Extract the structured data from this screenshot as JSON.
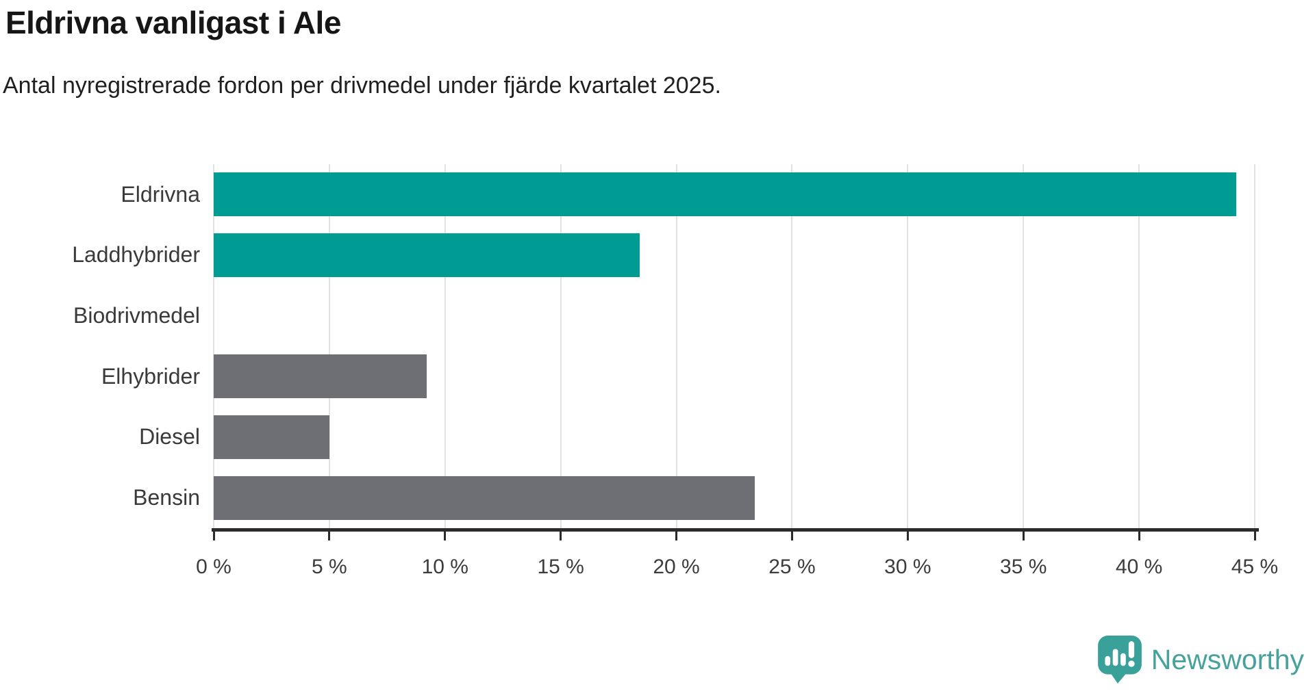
{
  "chart": {
    "title": "Eldrivna vanligast i Ale",
    "subtitle": "Antal nyregistrerade fordon per drivmedel under fjärde kvartalet 2025."
  },
  "chart_data": {
    "type": "bar",
    "orientation": "horizontal",
    "title": "Eldrivna vanligast i Ale",
    "subtitle": "Antal nyregistrerade fordon per drivmedel under fjärde kvartalet 2025.",
    "categories": [
      "Eldrivna",
      "Laddhybrider",
      "Biodrivmedel",
      "Elhybrider",
      "Diesel",
      "Bensin"
    ],
    "values": [
      44.2,
      18.4,
      0,
      9.2,
      5.0,
      23.4
    ],
    "unit": "%",
    "bar_colors": [
      "#009b93",
      "#009b93",
      "#6e6e75",
      "#6e6e75",
      "#6e6e75",
      "#6e6e75"
    ],
    "highlighted_categories": [
      "Eldrivna",
      "Laddhybrider"
    ],
    "xlim": [
      0,
      45
    ],
    "x_ticks": [
      0,
      5,
      10,
      15,
      20,
      25,
      30,
      35,
      40,
      45
    ],
    "x_tick_label_suffix": " %",
    "xlabel": "",
    "ylabel": "",
    "grid": "vertical-light",
    "legend": "none"
  },
  "colors": {
    "highlight_teal": "#009b93",
    "neutral_gray": "#6e6e75",
    "gridline": "#e2e2e2",
    "axis": "#2b2b2b",
    "title_text": "#161616",
    "label_text": "#3a3a3a",
    "brand_teal": "#47a29c"
  },
  "branding": {
    "name": "Newsworthy",
    "icon": "newsworthy-speech-bubble-chart-icon",
    "color": "#47a29c"
  }
}
